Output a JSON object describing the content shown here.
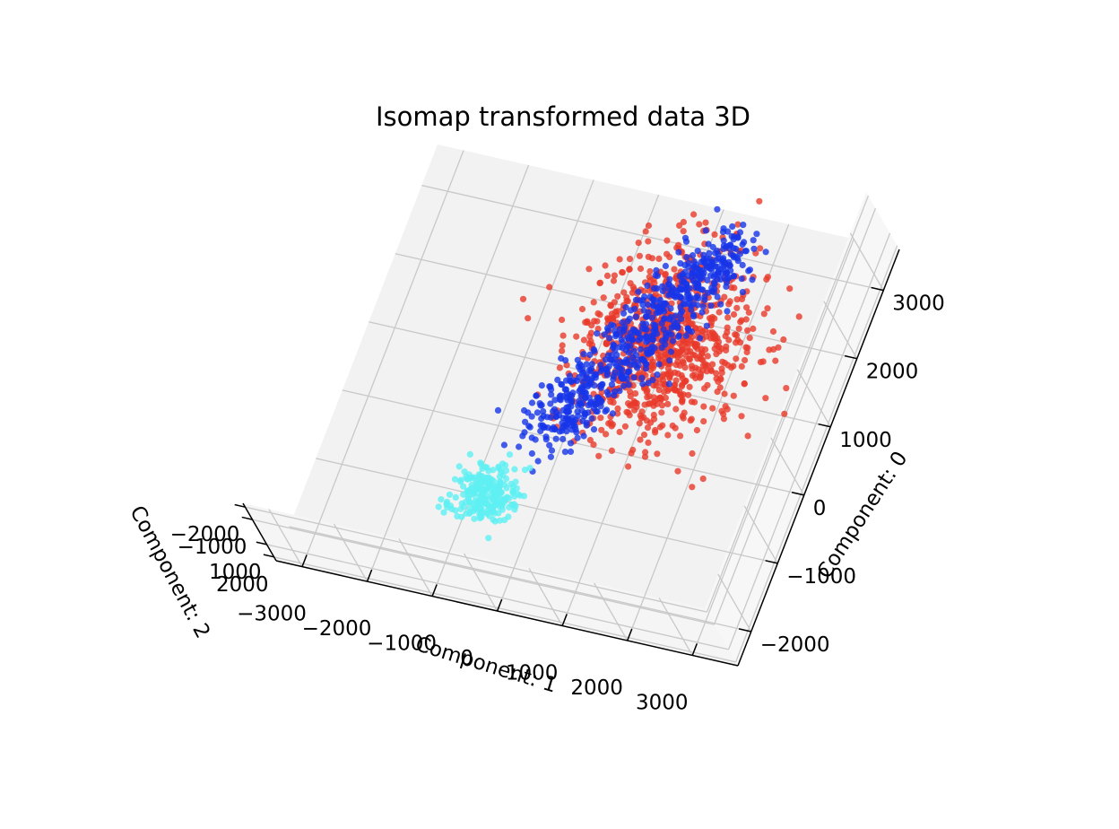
{
  "chart_data": {
    "type": "scatter",
    "projection": "3d",
    "title": "Isomap transformed data 3D",
    "axes": {
      "x": {
        "label": "Component: 0",
        "ticks": [
          -2000,
          -1000,
          0,
          1000,
          2000,
          3000
        ],
        "range": [
          -2500,
          3600
        ]
      },
      "y": {
        "label": "Component: 1",
        "ticks": [
          -3000,
          -2000,
          -1000,
          0,
          1000,
          2000,
          3000
        ],
        "range": [
          -3400,
          3700
        ]
      },
      "z": {
        "label": "Component: 2",
        "ticks": [
          -2000,
          -1000,
          1000,
          2000
        ],
        "range": [
          -2300,
          2300
        ]
      }
    },
    "grid": true,
    "pane_color": "#f2f2f2",
    "series": [
      {
        "color": "#e8392a",
        "center": [
          1300,
          1400,
          0
        ],
        "spread": [
          700,
          600,
          400
        ],
        "count": 900
      },
      {
        "color": "#1634e8",
        "center": [
          800,
          600,
          200
        ],
        "spread": [
          450,
          300,
          250
        ],
        "count": 650
      },
      {
        "color": "#5ef0f2",
        "center": [
          -1300,
          -400,
          0
        ],
        "spread": [
          200,
          250,
          120
        ],
        "count": 220
      }
    ]
  }
}
